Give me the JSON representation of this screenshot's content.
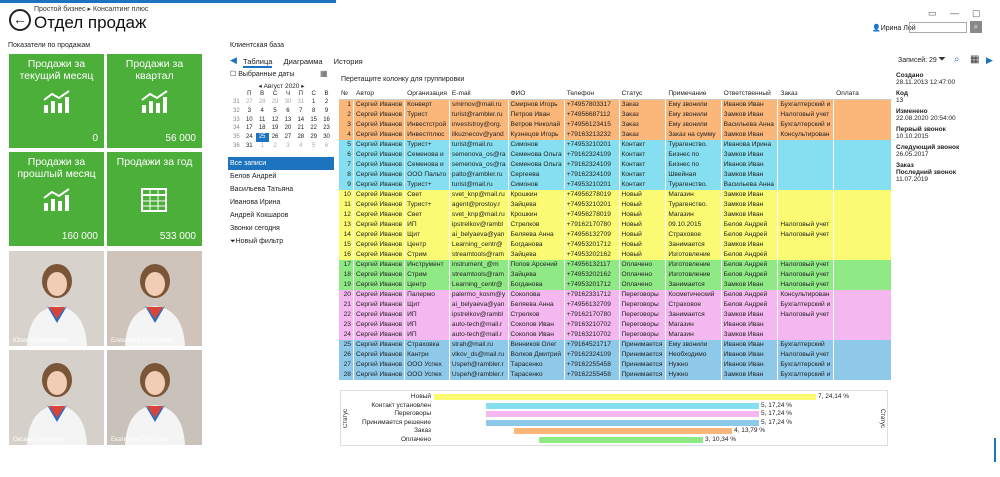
{
  "header": {
    "breadcrumb1": "Простой бизнес",
    "breadcrumb_sep": "▸",
    "breadcrumb2": "Консалтинг плюс",
    "title": "Отдел продаж",
    "user": "Ирина Лой"
  },
  "left": {
    "heading": "Показатели по продажам",
    "tiles": [
      {
        "title": "Продажи за текущий месяц",
        "value": "0"
      },
      {
        "title": "Продажи за квартал",
        "value": "56 000"
      },
      {
        "title": "Продажи за прошлый месяц",
        "value": "160 000"
      },
      {
        "title": "Продажи за год",
        "value": "533 000"
      }
    ],
    "photos": [
      "Юлия Кожевникова",
      "Елизавета Валентенко",
      "Оксана Белянская",
      "Екатерина Золотова"
    ]
  },
  "mid": {
    "heading": "Клиентская база",
    "tabs": [
      "Таблица",
      "Диаграмма",
      "История"
    ],
    "selected_dates": "Выбранные даты",
    "calendar": {
      "month": "Август 2020",
      "days": [
        "П",
        "В",
        "С",
        "Ч",
        "П",
        "С",
        "В"
      ],
      "weeks": [
        [
          "31",
          "27",
          "28",
          "29",
          "30",
          "31",
          "1",
          "2"
        ],
        [
          "32",
          "3",
          "4",
          "5",
          "6",
          "7",
          "8",
          "9"
        ],
        [
          "33",
          "10",
          "11",
          "12",
          "13",
          "14",
          "15",
          "16"
        ],
        [
          "34",
          "17",
          "18",
          "19",
          "20",
          "21",
          "22",
          "23"
        ],
        [
          "35",
          "24",
          "25",
          "26",
          "27",
          "28",
          "29",
          "30"
        ],
        [
          "36",
          "31",
          "1",
          "2",
          "3",
          "4",
          "5",
          "6"
        ]
      ]
    },
    "filters": [
      "Все записи",
      "Белов Андрей",
      "Васильева Татьяна",
      "Иванова Ирина",
      "Андрей Кокшаров",
      "Звонки сегодня",
      "Новый фильтр"
    ]
  },
  "grid": {
    "group_hint": "Перетащите колонку для группировки",
    "records": "Записей: 29",
    "columns": [
      "№",
      "Автор",
      "Организация",
      "E-mail",
      "ФИО",
      "Телефон",
      "Статус",
      "Примечание",
      "Ответственный",
      "Заказ",
      "Оплата"
    ],
    "rows": [
      [
        "1",
        "Сергей Иванов",
        "Конверт",
        "smirnov@mail.ru",
        "Смирнов Игорь",
        "+74957803317",
        "Заказ",
        "Ему звонили",
        "Иванов Иван",
        "Бухгалтерский и",
        ""
      ],
      [
        "2",
        "Сергей Иванов",
        "Турист",
        "turist@rambler.ru",
        "Петров Иван",
        "+74956687112",
        "Заказ",
        "Ему звонили",
        "Замков Иван",
        "Налоговый учет",
        ""
      ],
      [
        "3",
        "Сергей Иванов",
        "Инвестстрой",
        "investstroy@org.",
        "Ветров Николай",
        "+74956123415",
        "Заказ",
        "Ему звонили",
        "Васильева Анна",
        "Бухгалтерский и",
        ""
      ],
      [
        "4",
        "Сергей Иванов",
        "Инвестплюс",
        "ilkuznecov@yand",
        "Кузнецов Игорь",
        "+79163213232",
        "Заказ",
        "Заказ на сумму",
        "Замков Иван",
        "Консультирован",
        ""
      ],
      [
        "5",
        "Сергей Иванов",
        "Турист+",
        "turist@mail.ru",
        "Симонов",
        "+74953210201",
        "Контакт",
        "Турагенство.",
        "Иванова Ирина",
        "",
        ""
      ],
      [
        "6",
        "Сергей Иванов",
        "Семенова и",
        "semenova_os@ra",
        "Семенова Ольга",
        "+79162324109",
        "Контакт",
        "Бизнес по",
        "Замков Иван",
        "",
        ""
      ],
      [
        "7",
        "Сергей Иванов",
        "Семенова и",
        "semenova_os@ra",
        "Семенова Ольга",
        "+79162324109",
        "Контакт",
        "Бизнес по",
        "Иванов Иван",
        "",
        ""
      ],
      [
        "8",
        "Сергей Иванов",
        "ООО Пальто",
        "palto@rambler.ru",
        "Сергеева",
        "+79162324109",
        "Контакт",
        "Швейная",
        "Замков Иван",
        "",
        ""
      ],
      [
        "9",
        "Сергей Иванов",
        "Турист+",
        "turist@mail.ru",
        "Симонов",
        "+74953210201",
        "Контакт",
        "Турагенство.",
        "Васильева Анна",
        "",
        ""
      ],
      [
        "10",
        "Сергей Иванов",
        "Свет",
        "svet_knp@mail.ru",
        "Крошкин",
        "+74956278019",
        "Новый",
        "Магазин",
        "Замков Иван",
        "",
        ""
      ],
      [
        "11",
        "Сергей Иванов",
        "Турист+",
        "agent@prostoy.r",
        "Зайцева",
        "+74953210201",
        "Новый",
        "Турагенство.",
        "Замков Иван",
        "",
        ""
      ],
      [
        "12",
        "Сергей Иванов",
        "Свет",
        "svet_knp@mail.ru",
        "Крошкин",
        "+74956278019",
        "Новый",
        "Магазин",
        "Замков Иван",
        "",
        ""
      ],
      [
        "13",
        "Сергей Иванов",
        "ИП",
        "ipstrelkov@rambl",
        "Стрелков",
        "+79162170780",
        "Новый",
        "09.10.2015",
        "Белов Андрей",
        "Налоговый учет",
        ""
      ],
      [
        "14",
        "Сергей Иванов",
        "Щит",
        "ai_belyaeva@yan",
        "Беляева Анна",
        "+74956132709",
        "Новый",
        "Страховое",
        "Белов Андрей",
        "Налоговый учет",
        ""
      ],
      [
        "15",
        "Сергей Иванов",
        "Центр",
        "Learning_centr@",
        "Богданова",
        "+74953201712",
        "Новый",
        "Занимается",
        "Замков Иван",
        "",
        ""
      ],
      [
        "16",
        "Сергей Иванов",
        "Стрим",
        "streamtools@ram",
        "Зайцева",
        "+74953202162",
        "Новый",
        "Изготовление",
        "Белов Андрей",
        "",
        ""
      ],
      [
        "17",
        "Сергей Иванов",
        "Инструмент",
        "instrument_@m",
        "Попов Арсений",
        "+74956132117",
        "Оплачено",
        "Изготовление",
        "Белов Андрей",
        "Налоговый учет",
        ""
      ],
      [
        "18",
        "Сергей Иванов",
        "Стрим",
        "streamtools@ram",
        "Зайцева",
        "+74953202162",
        "Оплачено",
        "Изготовление",
        "Белов Андрей",
        "Налоговый учет",
        ""
      ],
      [
        "19",
        "Сергей Иванов",
        "Центр",
        "Learning_centr@",
        "Богданова",
        "+74953201712",
        "Оплачено",
        "Занимается",
        "Замков Иван",
        "Налоговый учет",
        ""
      ],
      [
        "20",
        "Сергей Иванов",
        "Палермо",
        "palermo_kosm@y",
        "Соколова",
        "+79162331712",
        "Переговоры",
        "Косметический",
        "Белов Андрей",
        "Консультирован",
        ""
      ],
      [
        "21",
        "Сергей Иванов",
        "Щит",
        "ai_belyaeva@yan",
        "Беляева Анна",
        "+74956132709",
        "Переговоры",
        "Страховое",
        "Белов Андрей",
        "Бухгалтерский и",
        ""
      ],
      [
        "22",
        "Сергей Иванов",
        "ИП",
        "ipstrelkov@rambl",
        "Стрелков",
        "+79162170780",
        "Переговоры",
        "Занимается",
        "Замков Иван",
        "Налоговый учет",
        ""
      ],
      [
        "23",
        "Сергей Иванов",
        "ИП",
        "auto-tech@mail.r",
        "Соколов Иван",
        "+79163210702",
        "Переговоры",
        "Магазин",
        "Иванов Иван",
        "",
        ""
      ],
      [
        "24",
        "Сергей Иванов",
        "ИП",
        "auto-tech@mail.r",
        "Соколов Иван",
        "+79163210702",
        "Переговоры",
        "Магазин",
        "Замков Иван",
        "",
        ""
      ],
      [
        "25",
        "Сергей Иванов",
        "Страховка",
        "strah@mail.ru",
        "Винников Олег",
        "+79164521717",
        "Принимается",
        "Ему звонили",
        "Иванов Иван",
        "Бухгалтерский",
        ""
      ],
      [
        "26",
        "Сергей Иванов",
        "Кантри",
        "vlkov_ds@mail.ru",
        "Волков Дмитрий",
        "+79162324109",
        "Принимается",
        "Необходимо",
        "Иванов Иван",
        "Налоговый учет",
        ""
      ],
      [
        "27",
        "Сергей Иванов",
        "ООО Успех",
        "Uspeh@rambler.r",
        "Тарасенко",
        "+79162255458",
        "Принимается",
        "Нужно",
        "Иванов Иван",
        "Бухгалтерский и",
        ""
      ],
      [
        "28",
        "Сергей Иванов",
        "ООО Успех",
        "Uspeh@rambler.r",
        "Тарасенко",
        "+79162255458",
        "Принимается",
        "Нужно",
        "Замков Иван",
        "Бухгалтерский и",
        ""
      ]
    ]
  },
  "colors": {
    "orange": "#fbb77a",
    "cyan": "#86dff0",
    "yellow": "#fafa73",
    "green": "#8fea86",
    "pink": "#f5b7f0",
    "blue": "#8ec9ea",
    "accent": "#1e73be",
    "tile_green": "#4caf3a"
  },
  "details": {
    "created_label": "Создано",
    "created": "28.11.2013 12:47:00",
    "code_label": "Код",
    "code": "13",
    "changed_label": "Изменено",
    "changed": "22.08.2020 20:54:00",
    "first_label": "Первый звонок",
    "first": "10.10.2015",
    "next_label": "Следующий звонок",
    "next": "26.05.2017",
    "order_label": "Заказ",
    "last_label": "Последний звонок",
    "last": "11.07.2019"
  },
  "chart_data": {
    "type": "bar",
    "axis_label": "Статус",
    "categories": [
      "Новый",
      "Контакт установлен",
      "Переговоры",
      "Принимается решение",
      "Заказ",
      "Оплачено"
    ],
    "values": [
      7,
      5,
      5,
      5,
      4,
      3
    ],
    "labels": [
      "7, 24,14 %",
      "5, 17,24 %",
      "5, 17,24 %",
      "5, 17,24 %",
      "4, 13,79 %",
      "3, 10,34 %"
    ],
    "colors": [
      "#fafa73",
      "#86dff0",
      "#f5b7f0",
      "#8ec9ea",
      "#fbb77a",
      "#8fea86"
    ]
  }
}
